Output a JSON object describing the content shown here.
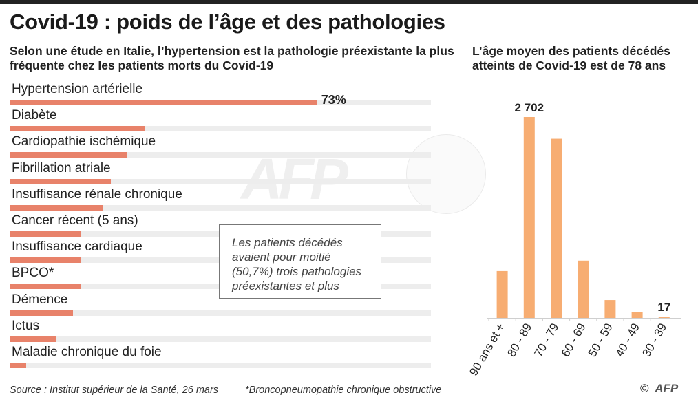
{
  "title": "Covid-19 : poids de l’âge et des pathologies",
  "subtitle_left": "Selon une étude en Italie, l’hypertension est la pathologie préexistante la plus fréquente chez les patients morts du Covid-19",
  "subtitle_right": "L’âge moyen des patients décédés atteints de Covid-19 est de 78 ans",
  "note": [
    "Les patients décédés",
    "avaient pour moitié",
    "(50,7%) trois pathologies",
    "préexistantes et plus"
  ],
  "source": "Source : Institut supérieur de la Santé, 26 mars",
  "footnote": "*Broncopneumopathie chronique obstructive",
  "credit": {
    "symbol": "©",
    "logo": "AFP"
  },
  "watermark": "AFP",
  "colors": {
    "bar": "#e8826a",
    "track": "#ededed",
    "column": "#f7ad72",
    "text": "#222222"
  },
  "chart_data": [
    {
      "type": "bar",
      "orientation": "horizontal",
      "title": "",
      "categories": [
        "Hypertension artérielle",
        "Diabète",
        "Cardiopathie ischémique",
        "Fibrillation atriale",
        "Insuffisance rénale chronique",
        "Cancer récent (5 ans)",
        "Insuffisance cardiaque",
        "BPCO*",
        "Démence",
        "Ictus",
        "Maladie chronique du foie"
      ],
      "values": [
        73,
        32,
        28,
        24,
        22,
        17,
        17,
        17,
        15,
        11,
        4
      ],
      "value_labels": [
        "73%",
        "",
        "",
        "",
        "",
        "",
        "",
        "",
        "",
        "",
        ""
      ],
      "unit": "%",
      "xlim": [
        0,
        100
      ],
      "grid": false
    },
    {
      "type": "bar",
      "orientation": "vertical",
      "title": "",
      "categories": [
        "90 ans et +",
        "80 - 89",
        "70 - 79",
        "60 - 69",
        "50 - 59",
        "40 - 49",
        "30 - 39"
      ],
      "values": [
        630,
        2702,
        2410,
        770,
        240,
        75,
        17
      ],
      "value_labels": [
        "",
        "2 702",
        "",
        "",
        "",
        "",
        "17"
      ],
      "ylim": [
        0,
        2702
      ],
      "grid": false
    }
  ]
}
